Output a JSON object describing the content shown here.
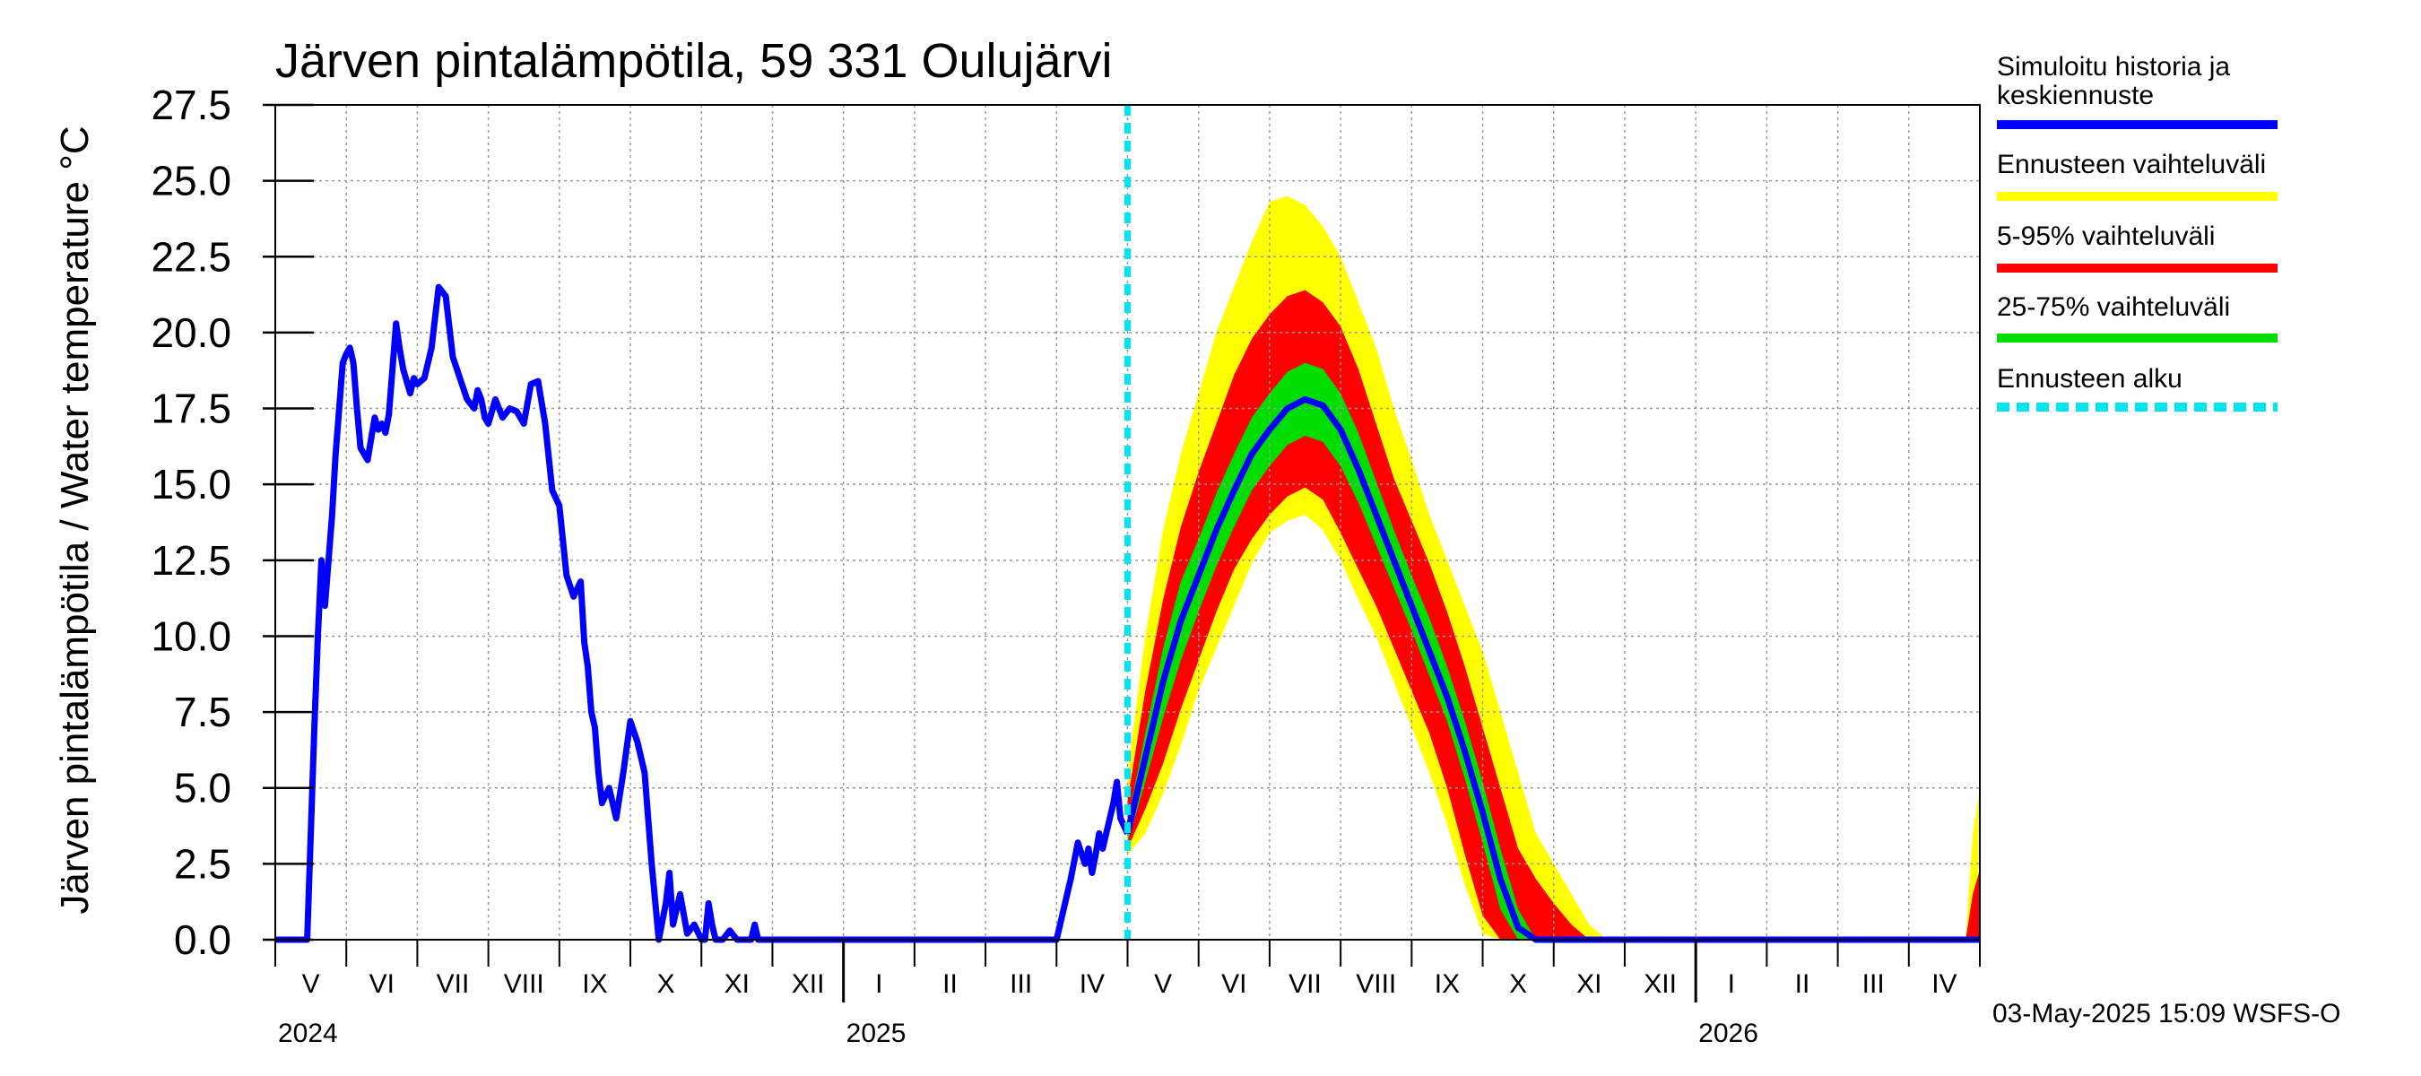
{
  "chart_data": {
    "type": "line",
    "title": "Järven pintalämpötila, 59 331 Oulujärvi",
    "ylabel": "Järven pintalämpötila / Water temperature °C",
    "ylim": [
      0,
      27.5
    ],
    "xlim": [
      0,
      24.0
    ],
    "yticks": [
      "0.0",
      "2.5",
      "5.0",
      "7.5",
      "10.0",
      "12.5",
      "15.0",
      "17.5",
      "20.0",
      "22.5",
      "25.0",
      "27.5"
    ],
    "months": [
      "V",
      "VI",
      "VII",
      "VIII",
      "IX",
      "X",
      "XI",
      "XII",
      "I",
      "II",
      "III",
      "IV",
      "V",
      "VI",
      "VII",
      "VIII",
      "IX",
      "X",
      "XI",
      "XII",
      "I",
      "II",
      "III",
      "IV"
    ],
    "years": [
      {
        "label": "2024",
        "month": 0
      },
      {
        "label": "2025",
        "month": 8
      },
      {
        "label": "2026",
        "month": 20
      }
    ],
    "forecast_start": 12.0,
    "footer": "03-May-2025 15:09 WSFS-O",
    "legend": [
      {
        "label": "Simuloitu historia ja",
        "label2": "keskiennuste",
        "color": "#0000ff",
        "style": "solid"
      },
      {
        "label": "Ennusteen vaihteluväli",
        "color": "#ffff00",
        "style": "solid"
      },
      {
        "label": "5-95% vaihteluväli",
        "color": "#ff0000",
        "style": "solid"
      },
      {
        "label": "25-75% vaihteluväli",
        "color": "#00dd00",
        "style": "solid"
      },
      {
        "label": "Ennusteen alku",
        "color": "#00e5ee",
        "style": "dashed"
      }
    ],
    "history": {
      "name": "Simuloitu historia ja keskiennuste",
      "x": [
        0,
        0.3,
        0.45,
        0.55,
        0.6,
        0.65,
        0.7,
        0.75,
        0.8,
        0.85,
        0.9,
        0.95,
        1.0,
        1.05,
        1.1,
        1.15,
        1.2,
        1.3,
        1.35,
        1.4,
        1.45,
        1.5,
        1.55,
        1.6,
        1.7,
        1.75,
        1.8,
        1.9,
        1.95,
        2.0,
        2.1,
        2.2,
        2.3,
        2.4,
        2.5,
        2.6,
        2.7,
        2.8,
        2.85,
        2.9,
        2.95,
        3.0,
        3.1,
        3.2,
        3.3,
        3.4,
        3.5,
        3.6,
        3.7,
        3.8,
        3.9,
        4.0,
        4.1,
        4.2,
        4.3,
        4.35,
        4.4,
        4.45,
        4.5,
        4.55,
        4.6,
        4.7,
        4.8,
        4.9,
        5.0,
        5.1,
        5.2,
        5.3,
        5.4,
        5.5,
        5.55,
        5.6,
        5.7,
        5.8,
        5.9,
        6.0,
        6.05,
        6.1,
        6.15,
        6.2,
        6.3,
        6.4,
        6.5,
        6.6,
        6.7,
        6.75,
        6.8,
        6.85,
        6.9,
        7.0,
        7.05,
        7.1,
        7.15,
        7.2,
        7.3,
        7.4,
        7.5,
        7.6,
        7.7,
        7.8,
        8.0,
        8.5,
        9.0,
        9.5,
        10.0,
        10.5,
        11.0,
        11.2,
        11.3,
        11.4,
        11.45,
        11.5,
        11.55,
        11.6,
        11.65,
        11.7,
        11.8,
        11.85,
        11.9,
        12.0
      ],
      "y": [
        0,
        0,
        0,
        7,
        10,
        12.5,
        11,
        12.5,
        14,
        16,
        17.5,
        19,
        19.3,
        19.5,
        19.0,
        17.5,
        16.2,
        15.8,
        16.5,
        17.2,
        16.8,
        17.0,
        16.7,
        17.3,
        20.3,
        19.5,
        18.8,
        18.0,
        18.5,
        18.3,
        18.5,
        19.5,
        21.5,
        21.2,
        19.2,
        18.5,
        17.8,
        17.5,
        18.1,
        17.8,
        17.2,
        17.0,
        17.8,
        17.2,
        17.5,
        17.4,
        17.0,
        18.3,
        18.4,
        17.0,
        14.8,
        14.3,
        12.0,
        11.3,
        11.8,
        9.8,
        9.0,
        7.5,
        7.0,
        5.5,
        4.5,
        5.0,
        4.0,
        5.5,
        7.2,
        6.5,
        5.5,
        2.5,
        0,
        1.2,
        2.2,
        0.5,
        1.5,
        0.2,
        0.5,
        0,
        0,
        1.2,
        0.5,
        0,
        0,
        0.3,
        0,
        0,
        0,
        0.5,
        0,
        0,
        0,
        0,
        0,
        0,
        0,
        0,
        0,
        0,
        0,
        0,
        0,
        0,
        0,
        0,
        0,
        0,
        0,
        0,
        0,
        2.0,
        3.2,
        2.5,
        3.0,
        2.2,
        2.8,
        3.5,
        3.0,
        3.5,
        4.5,
        5.2,
        4.0,
        3.5
      ]
    },
    "forecast": {
      "x": [
        12.0,
        12.25,
        12.5,
        12.75,
        13.0,
        13.25,
        13.5,
        13.75,
        14.0,
        14.25,
        14.5,
        14.75,
        15.0,
        15.25,
        15.5,
        15.75,
        16.0,
        16.25,
        16.5,
        16.75,
        17.0,
        17.25,
        17.5,
        17.75,
        18.0,
        18.25,
        18.5,
        18.75,
        19.0,
        19.25,
        19.5,
        19.75,
        20.0
      ],
      "median": [
        3.5,
        6.0,
        8.5,
        10.5,
        12.0,
        13.5,
        14.8,
        16.0,
        16.8,
        17.5,
        17.8,
        17.6,
        16.8,
        15.5,
        14.0,
        12.5,
        11.0,
        9.5,
        8.0,
        6.2,
        4.2,
        2.0,
        0.4,
        0,
        0,
        0,
        0,
        0,
        0,
        0,
        0,
        0,
        0
      ],
      "p25": [
        3.2,
        5.2,
        7.3,
        9.2,
        10.8,
        12.3,
        13.6,
        14.8,
        15.6,
        16.3,
        16.6,
        16.4,
        15.6,
        14.4,
        13.0,
        11.6,
        10.2,
        8.7,
        7.2,
        5.3,
        3.2,
        1.0,
        0,
        0,
        0,
        0,
        0,
        0,
        0,
        0,
        0,
        0,
        0
      ],
      "p75": [
        3.9,
        6.8,
        9.6,
        11.8,
        13.2,
        14.7,
        16.0,
        17.2,
        18.0,
        18.7,
        19.0,
        18.8,
        18.0,
        16.7,
        15.1,
        13.5,
        12.0,
        10.6,
        9.0,
        7.2,
        5.2,
        3.0,
        1.0,
        0,
        0,
        0,
        0,
        0,
        0,
        0,
        0,
        0,
        0
      ],
      "p5": [
        3.0,
        4.3,
        5.8,
        7.6,
        9.2,
        10.8,
        12.2,
        13.2,
        14.0,
        14.6,
        14.9,
        14.5,
        13.4,
        12.2,
        11.0,
        9.6,
        8.2,
        6.8,
        5.0,
        2.8,
        0.8,
        0,
        0,
        0,
        0,
        0,
        0,
        0,
        0,
        0,
        0,
        0,
        0
      ],
      "p95": [
        4.6,
        8.2,
        11.2,
        13.6,
        15.4,
        17.0,
        18.6,
        19.8,
        20.6,
        21.2,
        21.4,
        21.0,
        20.2,
        18.8,
        17.0,
        15.2,
        13.8,
        12.4,
        10.8,
        9.0,
        7.0,
        5.0,
        3.0,
        2.0,
        1.2,
        0.5,
        0,
        0,
        0,
        0,
        0,
        0,
        0
      ],
      "min": [
        2.8,
        3.5,
        4.8,
        6.4,
        8.2,
        9.6,
        11.0,
        12.4,
        13.4,
        13.8,
        14.0,
        13.5,
        12.5,
        11.2,
        10.0,
        8.5,
        7.0,
        5.5,
        3.8,
        1.8,
        0.2,
        0,
        0,
        0,
        0,
        0,
        0,
        0,
        0,
        0,
        0,
        0,
        0
      ],
      "max": [
        5.5,
        10.0,
        13.5,
        16.0,
        18.0,
        20.0,
        21.5,
        23.0,
        24.3,
        24.5,
        24.2,
        23.5,
        22.5,
        21.0,
        19.5,
        17.5,
        15.8,
        14.0,
        12.5,
        11.0,
        9.5,
        7.5,
        5.5,
        3.5,
        2.5,
        1.5,
        0.5,
        0,
        0,
        0,
        0,
        0,
        0
      ],
      "end_x": [
        23.8,
        23.9,
        24.0
      ],
      "end_max": [
        0,
        3.5,
        5.0
      ],
      "end_p95": [
        0,
        1.5,
        2.3
      ]
    }
  }
}
